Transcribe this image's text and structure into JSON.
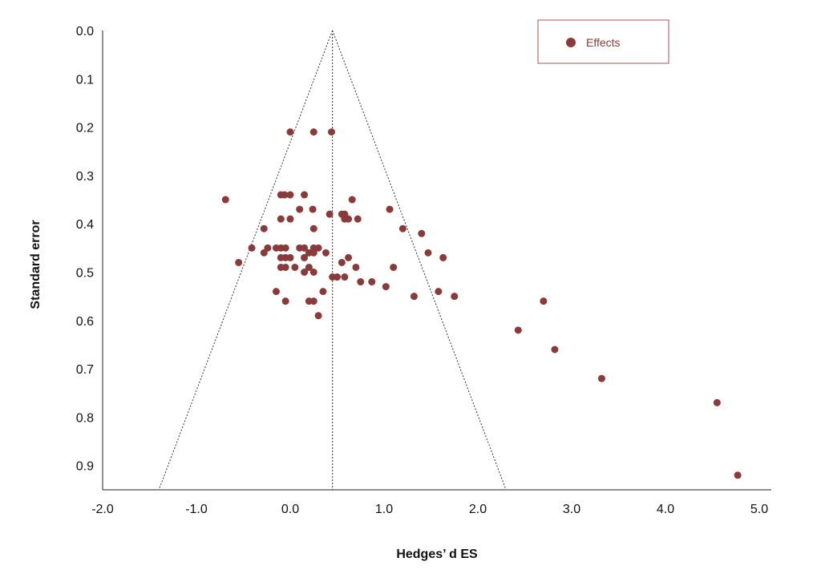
{
  "chart_data": {
    "type": "scatter",
    "title": "",
    "xlabel": "Hedges’ d ES",
    "ylabel": "Standard error",
    "xlim": [
      -2.0,
      5.0
    ],
    "ylim": [
      0.0,
      0.95
    ],
    "y_inverted": true,
    "grid": false,
    "legend_position": "top-right",
    "x_ticks": [
      -2.0,
      -1.0,
      0.0,
      1.0,
      2.0,
      3.0,
      4.0,
      5.0
    ],
    "x_tick_labels": [
      "-2.0",
      "-1.0",
      "0.0",
      "1.0",
      "2.0",
      "3.0",
      "4.0",
      "5.0"
    ],
    "y_ticks": [
      0.0,
      0.1,
      0.2,
      0.3,
      0.4,
      0.5,
      0.6,
      0.7,
      0.8,
      0.9
    ],
    "y_tick_labels": [
      "0.0",
      "0.1",
      "0.2",
      "0.3",
      "0.4",
      "0.5",
      "0.6",
      "0.7",
      "0.8",
      "0.9"
    ],
    "funnel": {
      "center": 0.45,
      "apex_se": 0.0,
      "base_se": 0.95,
      "left_x_at_base": -1.4,
      "right_x_at_base": 2.3
    },
    "series": [
      {
        "name": "Effects",
        "color": "#8b3a3a",
        "points": [
          {
            "x": 0.0,
            "y": 0.21
          },
          {
            "x": 0.25,
            "y": 0.21
          },
          {
            "x": 0.44,
            "y": 0.21
          },
          {
            "x": -0.69,
            "y": 0.35
          },
          {
            "x": -0.1,
            "y": 0.34
          },
          {
            "x": -0.06,
            "y": 0.34
          },
          {
            "x": 0.0,
            "y": 0.34
          },
          {
            "x": 0.15,
            "y": 0.34
          },
          {
            "x": 0.1,
            "y": 0.37
          },
          {
            "x": 0.24,
            "y": 0.37
          },
          {
            "x": 0.66,
            "y": 0.35
          },
          {
            "x": -0.1,
            "y": 0.39
          },
          {
            "x": 0.0,
            "y": 0.39
          },
          {
            "x": 0.42,
            "y": 0.38
          },
          {
            "x": 0.55,
            "y": 0.38
          },
          {
            "x": 0.58,
            "y": 0.38
          },
          {
            "x": 0.58,
            "y": 0.39
          },
          {
            "x": 0.62,
            "y": 0.39
          },
          {
            "x": 0.72,
            "y": 0.39
          },
          {
            "x": 1.06,
            "y": 0.37
          },
          {
            "x": -0.28,
            "y": 0.41
          },
          {
            "x": 0.25,
            "y": 0.41
          },
          {
            "x": 1.2,
            "y": 0.41
          },
          {
            "x": 1.4,
            "y": 0.42
          },
          {
            "x": -0.41,
            "y": 0.45
          },
          {
            "x": -0.24,
            "y": 0.45
          },
          {
            "x": -0.15,
            "y": 0.45
          },
          {
            "x": -0.1,
            "y": 0.45
          },
          {
            "x": -0.05,
            "y": 0.45
          },
          {
            "x": 0.1,
            "y": 0.45
          },
          {
            "x": 0.15,
            "y": 0.45
          },
          {
            "x": 0.25,
            "y": 0.45
          },
          {
            "x": 0.3,
            "y": 0.45
          },
          {
            "x": -0.28,
            "y": 0.46
          },
          {
            "x": 0.2,
            "y": 0.46
          },
          {
            "x": 0.25,
            "y": 0.46
          },
          {
            "x": 0.38,
            "y": 0.46
          },
          {
            "x": 1.47,
            "y": 0.46
          },
          {
            "x": -0.55,
            "y": 0.48
          },
          {
            "x": -0.1,
            "y": 0.47
          },
          {
            "x": -0.05,
            "y": 0.47
          },
          {
            "x": 0.0,
            "y": 0.47
          },
          {
            "x": 0.15,
            "y": 0.47
          },
          {
            "x": 0.55,
            "y": 0.48
          },
          {
            "x": 0.62,
            "y": 0.47
          },
          {
            "x": 1.63,
            "y": 0.47
          },
          {
            "x": -0.1,
            "y": 0.49
          },
          {
            "x": -0.05,
            "y": 0.49
          },
          {
            "x": 0.05,
            "y": 0.49
          },
          {
            "x": 0.2,
            "y": 0.49
          },
          {
            "x": 0.7,
            "y": 0.49
          },
          {
            "x": 1.1,
            "y": 0.49
          },
          {
            "x": 0.15,
            "y": 0.5
          },
          {
            "x": 0.25,
            "y": 0.5
          },
          {
            "x": 0.45,
            "y": 0.51
          },
          {
            "x": 0.5,
            "y": 0.51
          },
          {
            "x": 0.58,
            "y": 0.51
          },
          {
            "x": 0.75,
            "y": 0.52
          },
          {
            "x": 0.87,
            "y": 0.52
          },
          {
            "x": 1.02,
            "y": 0.53
          },
          {
            "x": -0.15,
            "y": 0.54
          },
          {
            "x": 0.35,
            "y": 0.54
          },
          {
            "x": 1.32,
            "y": 0.55
          },
          {
            "x": 1.58,
            "y": 0.54
          },
          {
            "x": 1.75,
            "y": 0.55
          },
          {
            "x": -0.05,
            "y": 0.56
          },
          {
            "x": 0.2,
            "y": 0.56
          },
          {
            "x": 0.25,
            "y": 0.56
          },
          {
            "x": 2.7,
            "y": 0.56
          },
          {
            "x": 0.3,
            "y": 0.59
          },
          {
            "x": 2.43,
            "y": 0.62
          },
          {
            "x": 2.82,
            "y": 0.66
          },
          {
            "x": 3.32,
            "y": 0.72
          },
          {
            "x": 4.55,
            "y": 0.77
          },
          {
            "x": 4.77,
            "y": 0.92
          }
        ]
      }
    ]
  }
}
